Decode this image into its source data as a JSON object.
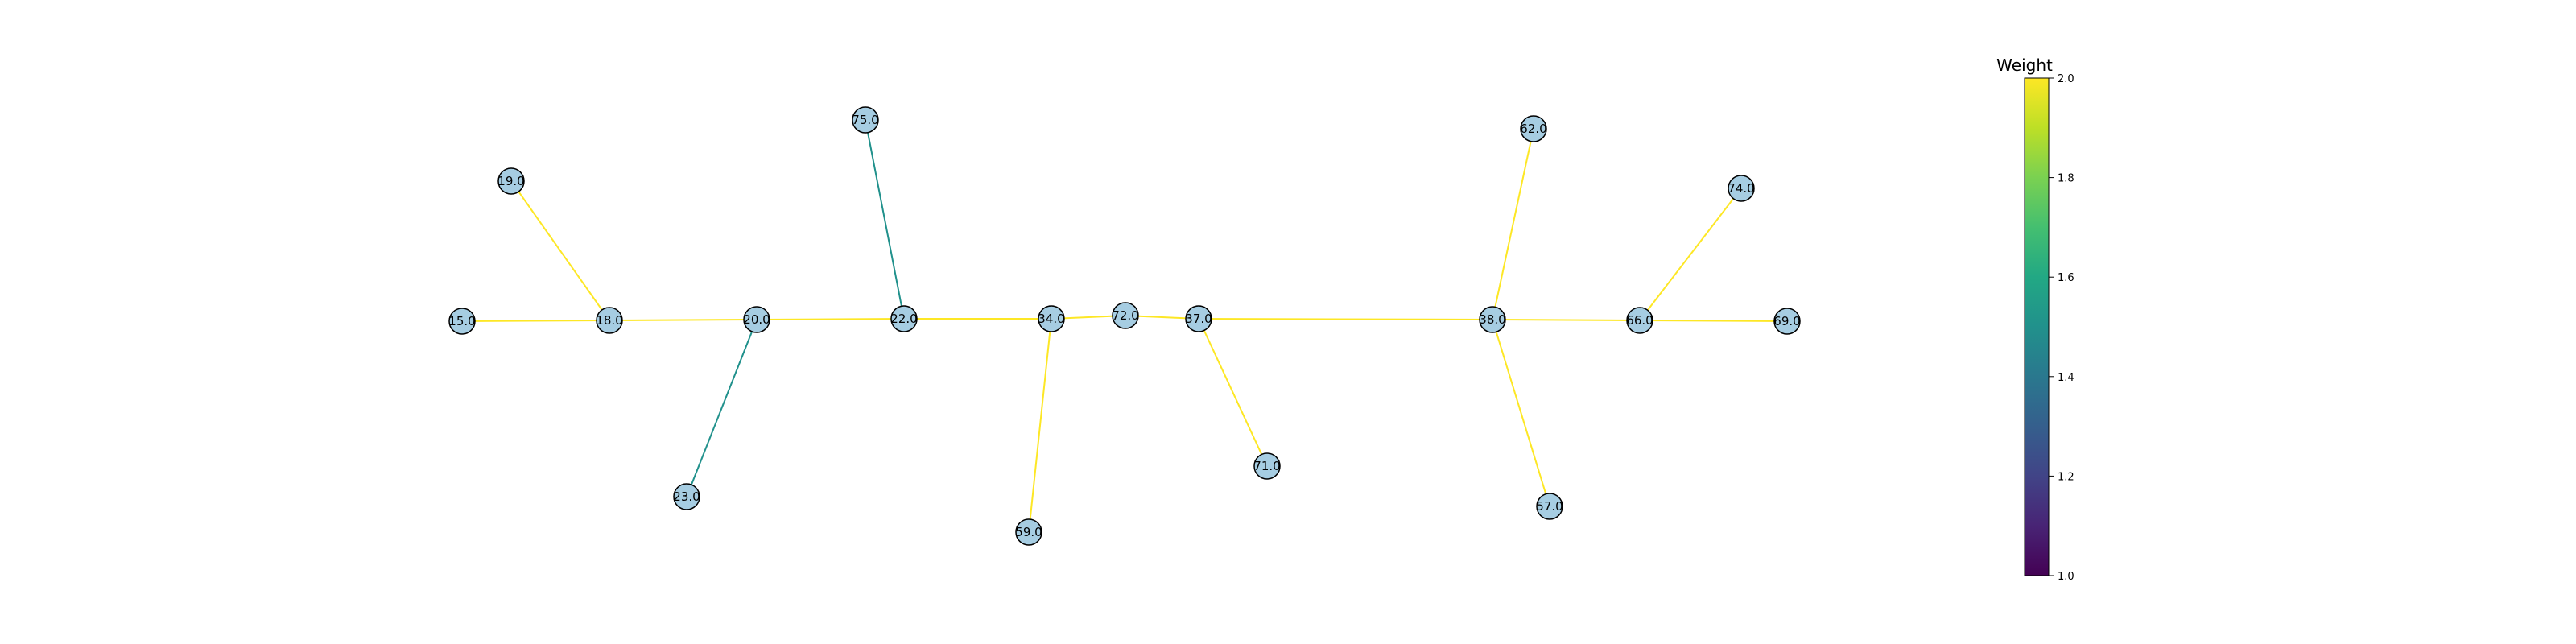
{
  "graph": {
    "nodes": [
      {
        "id": "15.0",
        "label": "15.0"
      },
      {
        "id": "18.0",
        "label": "18.0"
      },
      {
        "id": "19.0",
        "label": "19.0"
      },
      {
        "id": "20.0",
        "label": "20.0"
      },
      {
        "id": "23.0",
        "label": "23.0"
      },
      {
        "id": "22.0",
        "label": "22.0"
      },
      {
        "id": "75.0",
        "label": "75.0"
      },
      {
        "id": "34.0",
        "label": "34.0"
      },
      {
        "id": "59.0",
        "label": "59.0"
      },
      {
        "id": "72.0",
        "label": "72.0"
      },
      {
        "id": "37.0",
        "label": "37.0"
      },
      {
        "id": "71.0",
        "label": "71.0"
      },
      {
        "id": "38.0",
        "label": "38.0"
      },
      {
        "id": "62.0",
        "label": "62.0"
      },
      {
        "id": "57.0",
        "label": "57.0"
      },
      {
        "id": "66.0",
        "label": "66.0"
      },
      {
        "id": "74.0",
        "label": "74.0"
      },
      {
        "id": "69.0",
        "label": "69.0"
      }
    ],
    "edges": [
      {
        "source": "15.0",
        "target": "18.0",
        "weight": 2.0
      },
      {
        "source": "18.0",
        "target": "19.0",
        "weight": 2.0
      },
      {
        "source": "18.0",
        "target": "20.0",
        "weight": 2.0
      },
      {
        "source": "20.0",
        "target": "23.0",
        "weight": 1.5
      },
      {
        "source": "20.0",
        "target": "22.0",
        "weight": 2.0
      },
      {
        "source": "22.0",
        "target": "75.0",
        "weight": 1.5
      },
      {
        "source": "22.0",
        "target": "34.0",
        "weight": 2.0
      },
      {
        "source": "34.0",
        "target": "59.0",
        "weight": 2.0
      },
      {
        "source": "34.0",
        "target": "72.0",
        "weight": 2.0
      },
      {
        "source": "72.0",
        "target": "37.0",
        "weight": 2.0
      },
      {
        "source": "37.0",
        "target": "71.0",
        "weight": 2.0
      },
      {
        "source": "37.0",
        "target": "38.0",
        "weight": 2.0
      },
      {
        "source": "38.0",
        "target": "62.0",
        "weight": 2.0
      },
      {
        "source": "38.0",
        "target": "57.0",
        "weight": 2.0
      },
      {
        "source": "38.0",
        "target": "66.0",
        "weight": 2.0
      },
      {
        "source": "66.0",
        "target": "74.0",
        "weight": 2.0
      },
      {
        "source": "66.0",
        "target": "69.0",
        "weight": 2.0
      }
    ]
  },
  "colorbar": {
    "title": "Weight",
    "min": 1.0,
    "max": 2.0,
    "ticks": [
      "1.0",
      "1.2",
      "1.4",
      "1.6",
      "1.8",
      "2.0"
    ],
    "colormap": "viridis"
  },
  "colors": {
    "node_fill": "#a6cde2",
    "node_stroke": "#000000",
    "background": "#ffffff"
  }
}
